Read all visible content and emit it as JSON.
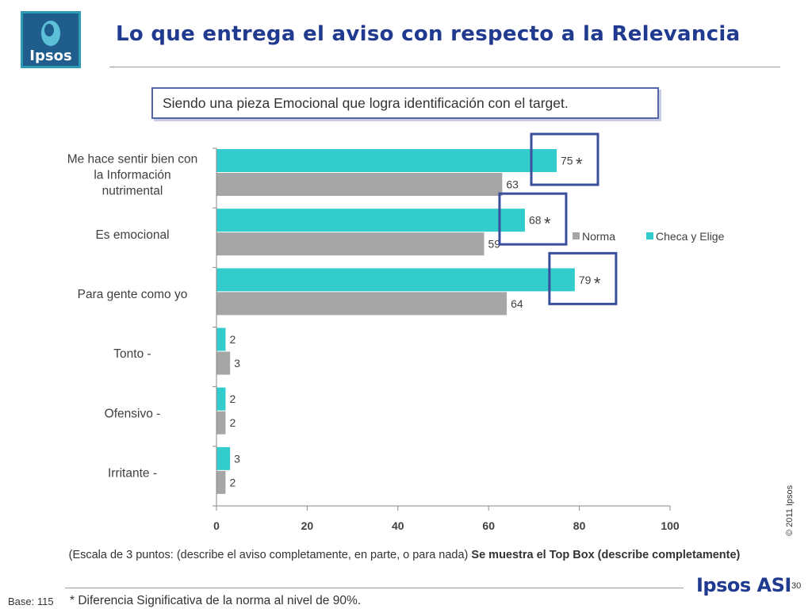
{
  "logo": {
    "text": "Ipsos"
  },
  "title": "Lo que entrega el aviso con respecto a la Relevancia",
  "subtitle": "Siendo una pieza Emocional que logra identificación con el target.",
  "copyright": "© 2011 Ipsos",
  "note": {
    "normal": "(Escala de 3 puntos: (describe el aviso completamente,  en parte, o para nada) ",
    "bold": "Se muestra el Top Box (describe completamente)"
  },
  "base": "Base: 115",
  "footnote": "* Diferencia Significativa de la norma al nivel de 90%.",
  "brand": "Ipsos ASI",
  "page_number": "30",
  "colors": {
    "checa": "#33cccc",
    "norma": "#a6a6a6",
    "highlight": "#3a4f9c",
    "title": "#1f3a8f"
  },
  "chart_data": {
    "type": "bar",
    "orientation": "horizontal",
    "categories": [
      [
        "Me hace sentir bien con",
        "la  Información",
        "nutrimental"
      ],
      [
        "Es emocional"
      ],
      [
        "Para gente como yo"
      ],
      [
        "Tonto -"
      ],
      [
        "Ofensivo -"
      ],
      [
        "Irritante -"
      ]
    ],
    "series": [
      {
        "name": "Checa y Elige",
        "color": "#33cccc",
        "values": [
          75,
          68,
          79,
          2,
          2,
          3
        ]
      },
      {
        "name": "Norma",
        "color": "#a6a6a6",
        "values": [
          63,
          59,
          64,
          3,
          2,
          2
        ]
      }
    ],
    "legend_order": [
      "Norma",
      "Checa y Elige"
    ],
    "significant": [
      true,
      true,
      true,
      false,
      false,
      false
    ],
    "significance_marker": "*",
    "xlim": [
      0,
      100
    ],
    "xticks": [
      0,
      20,
      40,
      60,
      80,
      100
    ]
  }
}
